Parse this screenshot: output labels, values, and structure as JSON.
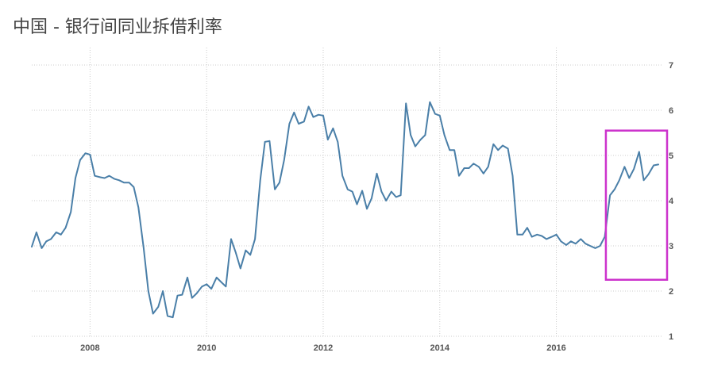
{
  "chart_data": {
    "type": "line",
    "title": "中国 - 银行间同业拆借利率",
    "xlabel": "",
    "ylabel": "",
    "xlim": [
      2007.0,
      2017.9
    ],
    "ylim": [
      1,
      7
    ],
    "x_ticks": [
      2008,
      2010,
      2012,
      2014,
      2016
    ],
    "x_tick_labels": [
      "2008",
      "2010",
      "2012",
      "2014",
      "2016"
    ],
    "y_ticks": [
      1,
      2,
      3,
      4,
      5,
      6,
      7
    ],
    "y_tick_labels": [
      "1",
      "2",
      "3",
      "4",
      "5",
      "6",
      "7"
    ],
    "grid": true,
    "y_axis_side": "right",
    "line_color": "#4a7fa8",
    "highlight_color": "#cc33cc",
    "highlight_region": {
      "x": [
        2016.85,
        2017.9
      ],
      "y": [
        2.25,
        5.55
      ]
    },
    "series": [
      {
        "values": [
          [
            2007.0,
            2.98
          ],
          [
            2007.08,
            3.3
          ],
          [
            2007.17,
            2.95
          ],
          [
            2007.25,
            3.1
          ],
          [
            2007.33,
            3.15
          ],
          [
            2007.42,
            3.3
          ],
          [
            2007.5,
            3.25
          ],
          [
            2007.58,
            3.4
          ],
          [
            2007.67,
            3.75
          ],
          [
            2007.75,
            4.5
          ],
          [
            2007.83,
            4.9
          ],
          [
            2007.92,
            5.05
          ],
          [
            2008.0,
            5.02
          ],
          [
            2008.08,
            4.55
          ],
          [
            2008.17,
            4.52
          ],
          [
            2008.25,
            4.5
          ],
          [
            2008.33,
            4.55
          ],
          [
            2008.42,
            4.48
          ],
          [
            2008.5,
            4.45
          ],
          [
            2008.58,
            4.4
          ],
          [
            2008.67,
            4.4
          ],
          [
            2008.75,
            4.3
          ],
          [
            2008.83,
            3.85
          ],
          [
            2008.92,
            2.95
          ],
          [
            2009.0,
            2.0
          ],
          [
            2009.08,
            1.5
          ],
          [
            2009.17,
            1.65
          ],
          [
            2009.25,
            2.0
          ],
          [
            2009.33,
            1.45
          ],
          [
            2009.42,
            1.42
          ],
          [
            2009.5,
            1.9
          ],
          [
            2009.58,
            1.92
          ],
          [
            2009.67,
            2.3
          ],
          [
            2009.75,
            1.85
          ],
          [
            2009.83,
            1.95
          ],
          [
            2009.92,
            2.1
          ],
          [
            2010.0,
            2.15
          ],
          [
            2010.08,
            2.05
          ],
          [
            2010.17,
            2.3
          ],
          [
            2010.25,
            2.2
          ],
          [
            2010.33,
            2.1
          ],
          [
            2010.42,
            3.15
          ],
          [
            2010.5,
            2.85
          ],
          [
            2010.58,
            2.5
          ],
          [
            2010.67,
            2.9
          ],
          [
            2010.75,
            2.8
          ],
          [
            2010.83,
            3.15
          ],
          [
            2010.92,
            4.45
          ],
          [
            2011.0,
            5.3
          ],
          [
            2011.08,
            5.32
          ],
          [
            2011.17,
            4.25
          ],
          [
            2011.25,
            4.4
          ],
          [
            2011.33,
            4.9
          ],
          [
            2011.42,
            5.7
          ],
          [
            2011.5,
            5.95
          ],
          [
            2011.58,
            5.7
          ],
          [
            2011.67,
            5.75
          ],
          [
            2011.75,
            6.08
          ],
          [
            2011.83,
            5.85
          ],
          [
            2011.92,
            5.9
          ],
          [
            2012.0,
            5.88
          ],
          [
            2012.08,
            5.35
          ],
          [
            2012.17,
            5.6
          ],
          [
            2012.25,
            5.3
          ],
          [
            2012.33,
            4.55
          ],
          [
            2012.42,
            4.25
          ],
          [
            2012.5,
            4.2
          ],
          [
            2012.58,
            3.92
          ],
          [
            2012.67,
            4.22
          ],
          [
            2012.75,
            3.82
          ],
          [
            2012.83,
            4.05
          ],
          [
            2012.92,
            4.6
          ],
          [
            2013.0,
            4.2
          ],
          [
            2013.08,
            4.0
          ],
          [
            2013.17,
            4.2
          ],
          [
            2013.25,
            4.08
          ],
          [
            2013.33,
            4.12
          ],
          [
            2013.42,
            6.15
          ],
          [
            2013.5,
            5.45
          ],
          [
            2013.58,
            5.2
          ],
          [
            2013.67,
            5.35
          ],
          [
            2013.75,
            5.45
          ],
          [
            2013.83,
            6.18
          ],
          [
            2013.92,
            5.92
          ],
          [
            2014.0,
            5.88
          ],
          [
            2014.08,
            5.45
          ],
          [
            2014.17,
            5.12
          ],
          [
            2014.25,
            5.12
          ],
          [
            2014.33,
            4.55
          ],
          [
            2014.42,
            4.72
          ],
          [
            2014.5,
            4.72
          ],
          [
            2014.58,
            4.82
          ],
          [
            2014.67,
            4.75
          ],
          [
            2014.75,
            4.6
          ],
          [
            2014.83,
            4.75
          ],
          [
            2014.92,
            5.25
          ],
          [
            2015.0,
            5.12
          ],
          [
            2015.08,
            5.22
          ],
          [
            2015.17,
            5.15
          ],
          [
            2015.25,
            4.55
          ],
          [
            2015.33,
            3.25
          ],
          [
            2015.42,
            3.25
          ],
          [
            2015.5,
            3.4
          ],
          [
            2015.58,
            3.2
          ],
          [
            2015.67,
            3.25
          ],
          [
            2015.75,
            3.22
          ],
          [
            2015.83,
            3.15
          ],
          [
            2015.92,
            3.2
          ],
          [
            2016.0,
            3.25
          ],
          [
            2016.08,
            3.1
          ],
          [
            2016.17,
            3.02
          ],
          [
            2016.25,
            3.1
          ],
          [
            2016.33,
            3.05
          ],
          [
            2016.42,
            3.15
          ],
          [
            2016.5,
            3.05
          ],
          [
            2016.58,
            3.0
          ],
          [
            2016.67,
            2.95
          ],
          [
            2016.75,
            3.0
          ],
          [
            2016.83,
            3.2
          ],
          [
            2016.92,
            4.12
          ],
          [
            2017.0,
            4.25
          ],
          [
            2017.08,
            4.45
          ],
          [
            2017.17,
            4.75
          ],
          [
            2017.25,
            4.5
          ],
          [
            2017.33,
            4.7
          ],
          [
            2017.42,
            5.08
          ],
          [
            2017.5,
            4.45
          ],
          [
            2017.58,
            4.58
          ],
          [
            2017.67,
            4.78
          ],
          [
            2017.75,
            4.8
          ]
        ]
      }
    ]
  }
}
